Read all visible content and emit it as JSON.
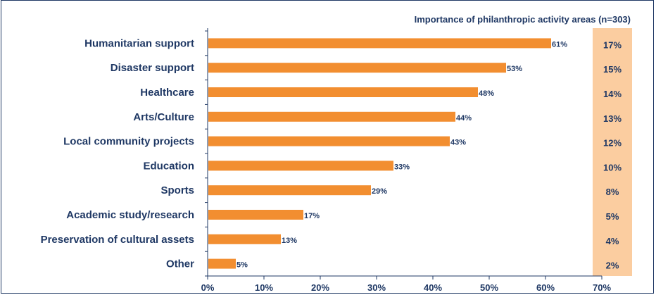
{
  "chart_data": {
    "type": "bar",
    "orientation": "horizontal",
    "title": "Importance of philanthropic activity areas (n=303)",
    "categories": [
      "Humanitarian support",
      "Disaster support",
      "Healthcare",
      "Arts/Culture",
      "Local community projects",
      "Education",
      "Sports",
      "Academic study/research",
      "Preservation of cultural assets",
      "Other"
    ],
    "values": [
      61,
      53,
      48,
      44,
      43,
      33,
      29,
      17,
      13,
      5
    ],
    "value_labels": [
      "61%",
      "53%",
      "48%",
      "44%",
      "43%",
      "33%",
      "29%",
      "17%",
      "13%",
      "5%"
    ],
    "side_values": [
      "17%",
      "15%",
      "14%",
      "13%",
      "12%",
      "10%",
      "8%",
      "5%",
      "4%",
      "2%"
    ],
    "xlim": [
      0,
      70
    ],
    "x_ticks": [
      "0%",
      "10%",
      "20%",
      "30%",
      "40%",
      "50%",
      "60%",
      "70%"
    ],
    "grid": false,
    "colors": {
      "bar": "#f28e30",
      "side_panel": "#fbcda0",
      "text": "#1f3864",
      "axis": "#1f3864"
    }
  }
}
